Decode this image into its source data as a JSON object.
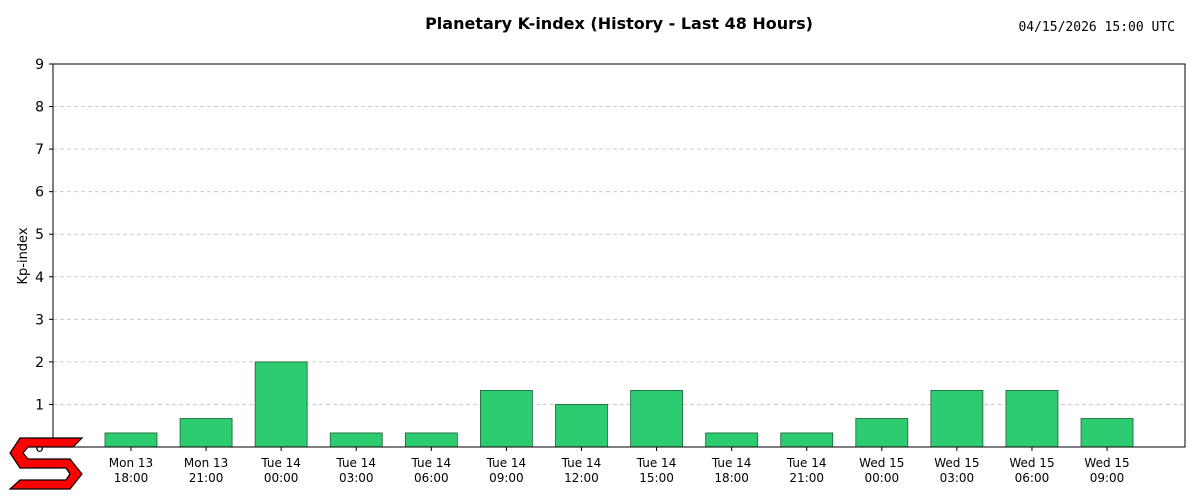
{
  "chart_data": {
    "type": "bar",
    "title": "Planetary K-index (History - Last 48 Hours)",
    "timestamp": "04/15/2026 15:00 UTC",
    "ylabel": "Kp-index",
    "xlabel": "",
    "ylim": [
      0,
      9
    ],
    "yticks": [
      0,
      1,
      2,
      3,
      4,
      5,
      6,
      7,
      8,
      9
    ],
    "grid": true,
    "categories": [
      [
        "Mon 13",
        "18:00"
      ],
      [
        "Mon 13",
        "21:00"
      ],
      [
        "Tue 14",
        "00:00"
      ],
      [
        "Tue 14",
        "03:00"
      ],
      [
        "Tue 14",
        "06:00"
      ],
      [
        "Tue 14",
        "09:00"
      ],
      [
        "Tue 14",
        "12:00"
      ],
      [
        "Tue 14",
        "15:00"
      ],
      [
        "Tue 14",
        "18:00"
      ],
      [
        "Tue 14",
        "21:00"
      ],
      [
        "Wed 15",
        "00:00"
      ],
      [
        "Wed 15",
        "03:00"
      ],
      [
        "Wed 15",
        "06:00"
      ],
      [
        "Wed 15",
        "09:00"
      ]
    ],
    "values": [
      0.33,
      0.67,
      2.0,
      0.33,
      0.33,
      1.33,
      1.0,
      1.33,
      0.33,
      0.33,
      0.67,
      1.33,
      1.33,
      0.67
    ],
    "colors": {
      "bar_fill": "#2ecc71",
      "bar_edge": "#1e5e38",
      "grid": "#cccccc",
      "logo": "#ff0000"
    }
  },
  "logo": {
    "icon": "swpc-s-logo-icon"
  }
}
